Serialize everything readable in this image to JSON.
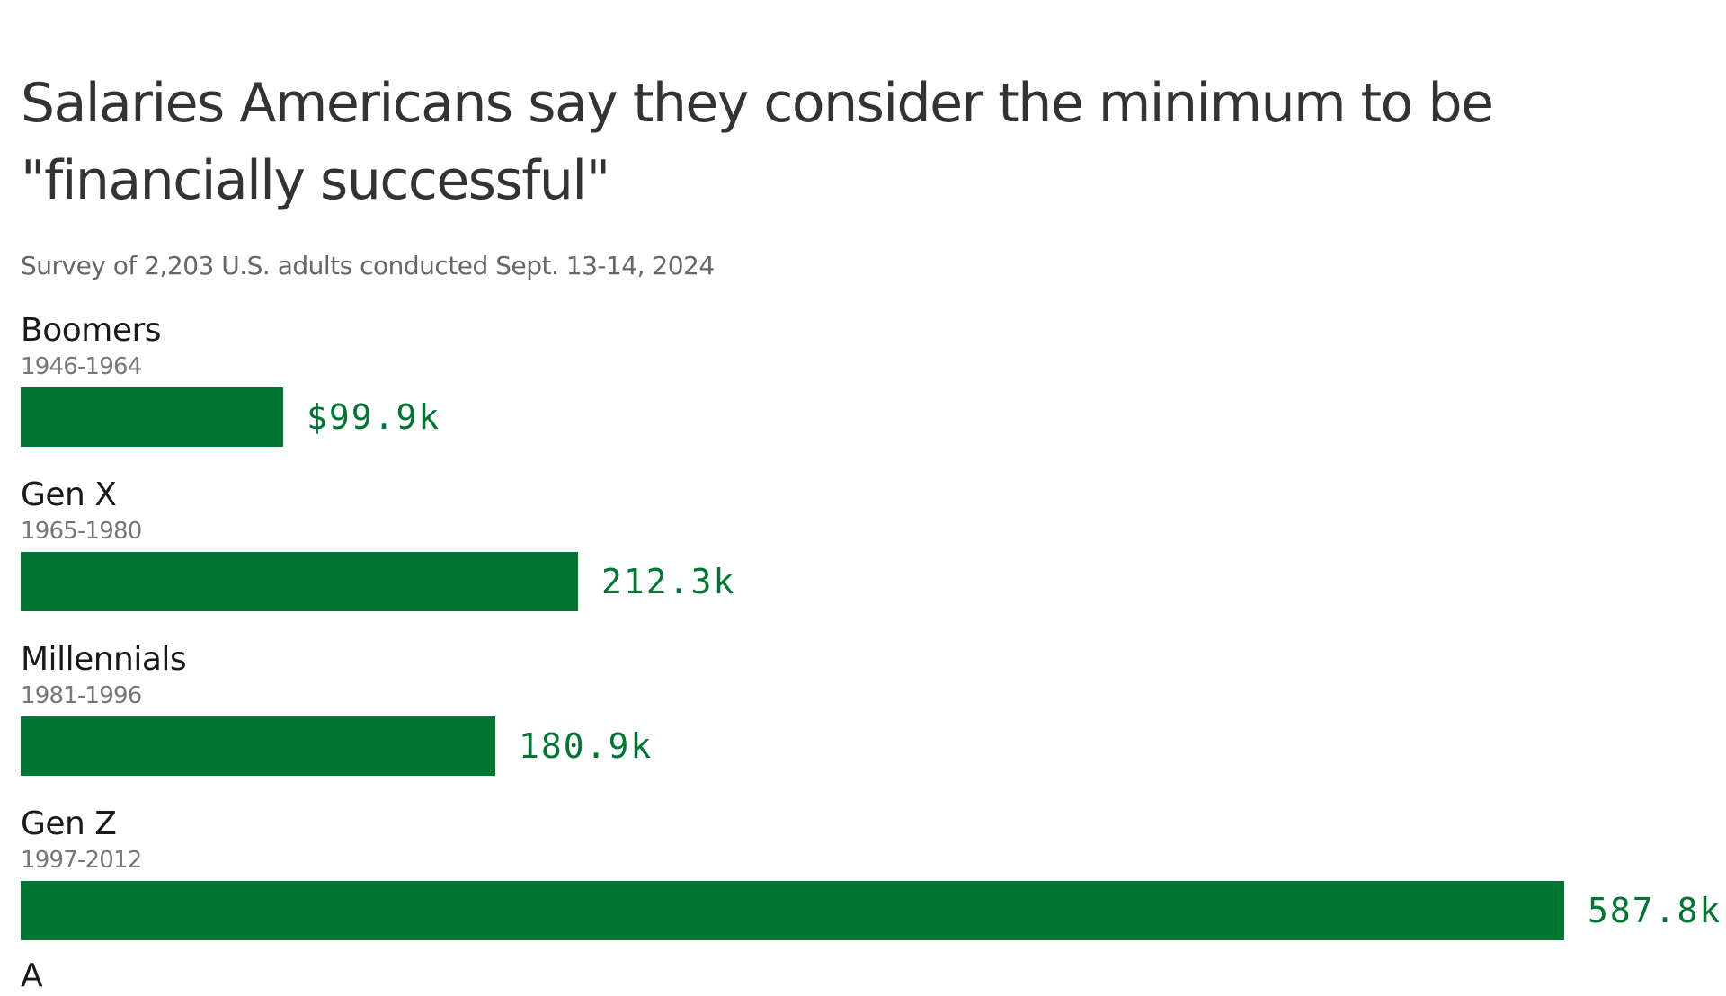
{
  "chart_data": {
    "type": "bar",
    "orientation": "horizontal",
    "title": "Salaries Americans say they consider the minimum to be \"financially successful\"",
    "subtitle": "Survey of 2,203 U.S. adults conducted Sept. 13-14, 2024",
    "categories": [
      "Boomers",
      "Gen X",
      "Millennials",
      "Gen Z"
    ],
    "category_years": [
      "1946-1964",
      "1965-1980",
      "1981-1996",
      "1997-2012"
    ],
    "values": [
      99.9,
      212.3,
      180.9,
      587.8
    ],
    "value_labels": [
      "$99.9k",
      "212.3k",
      "180.9k",
      "587.8k"
    ],
    "unit": "thousand dollars",
    "xlim": [
      0,
      587.8
    ],
    "grid": false,
    "bar_color": "#007632",
    "label_color": "#007632",
    "next_category_partial": "A"
  }
}
